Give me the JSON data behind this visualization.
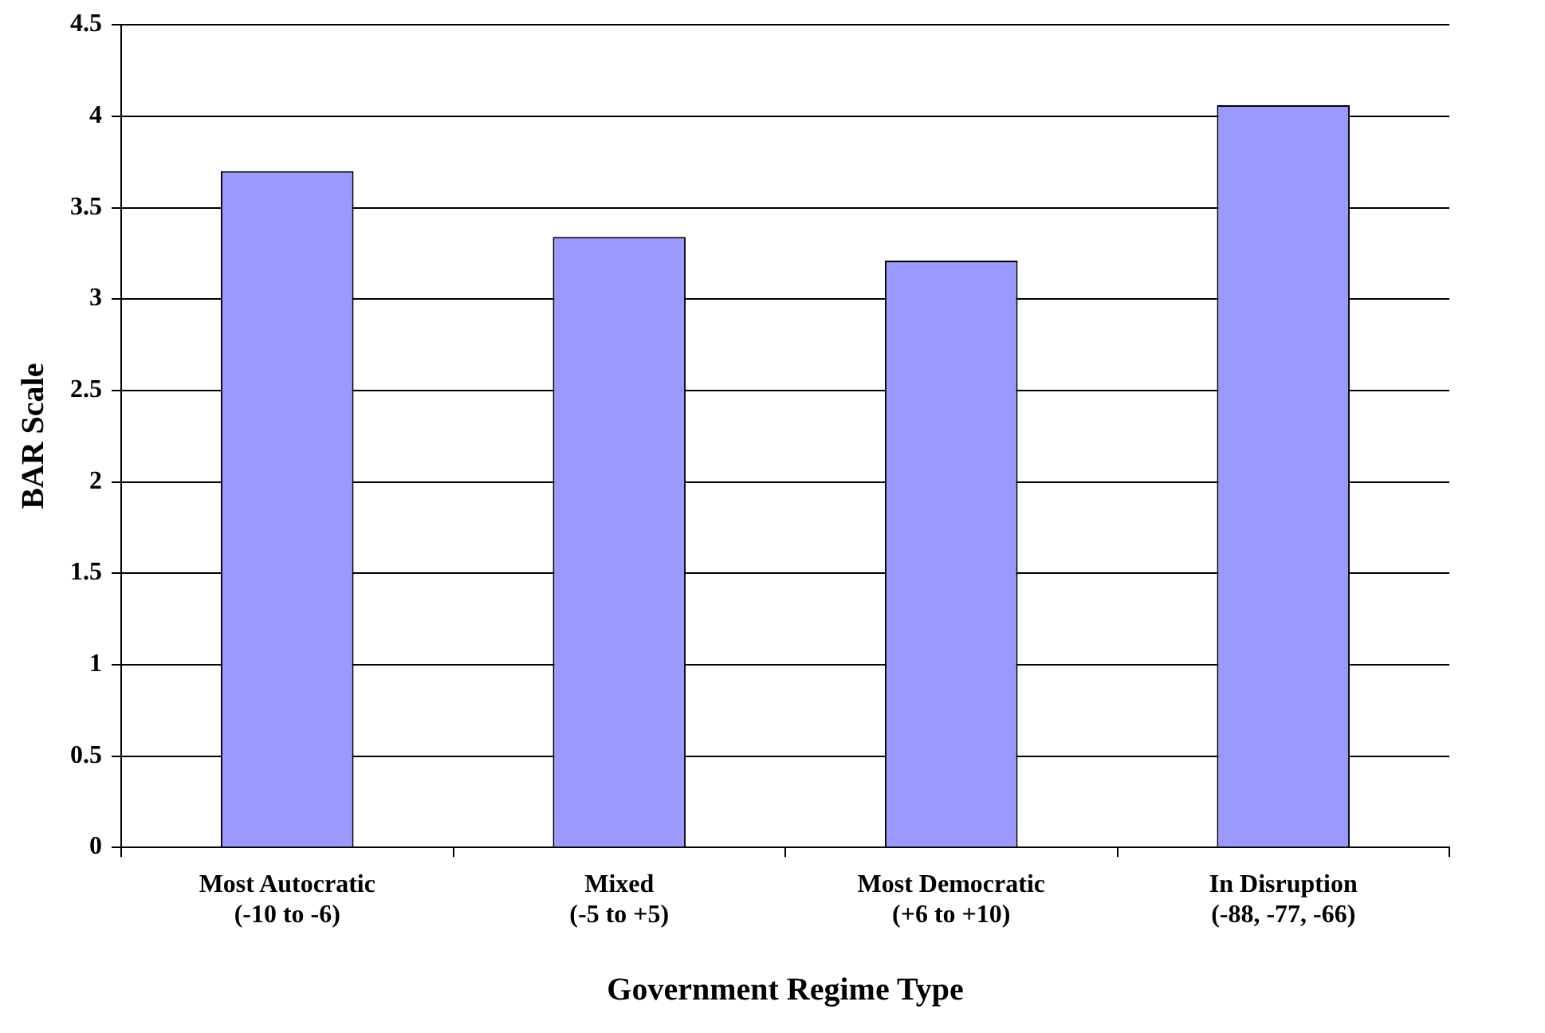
{
  "chart_data": {
    "type": "bar",
    "xlabel": "Government Regime Type",
    "ylabel": "BAR Scale",
    "categories": [
      "Most Autocratic\n(-10 to -6)",
      "Mixed\n(-5 to +5)",
      "Most Democratic\n(+6 to +10)",
      "In Disruption\n(-88, -77, -66)"
    ],
    "values": [
      3.7,
      3.34,
      3.21,
      4.06
    ],
    "color": "#9999ff",
    "ylim": [
      0,
      4.5
    ],
    "yticks": [
      0,
      0.5,
      1,
      1.5,
      2,
      2.5,
      3,
      3.5,
      4,
      4.5
    ],
    "grid": "y",
    "legend": false
  }
}
